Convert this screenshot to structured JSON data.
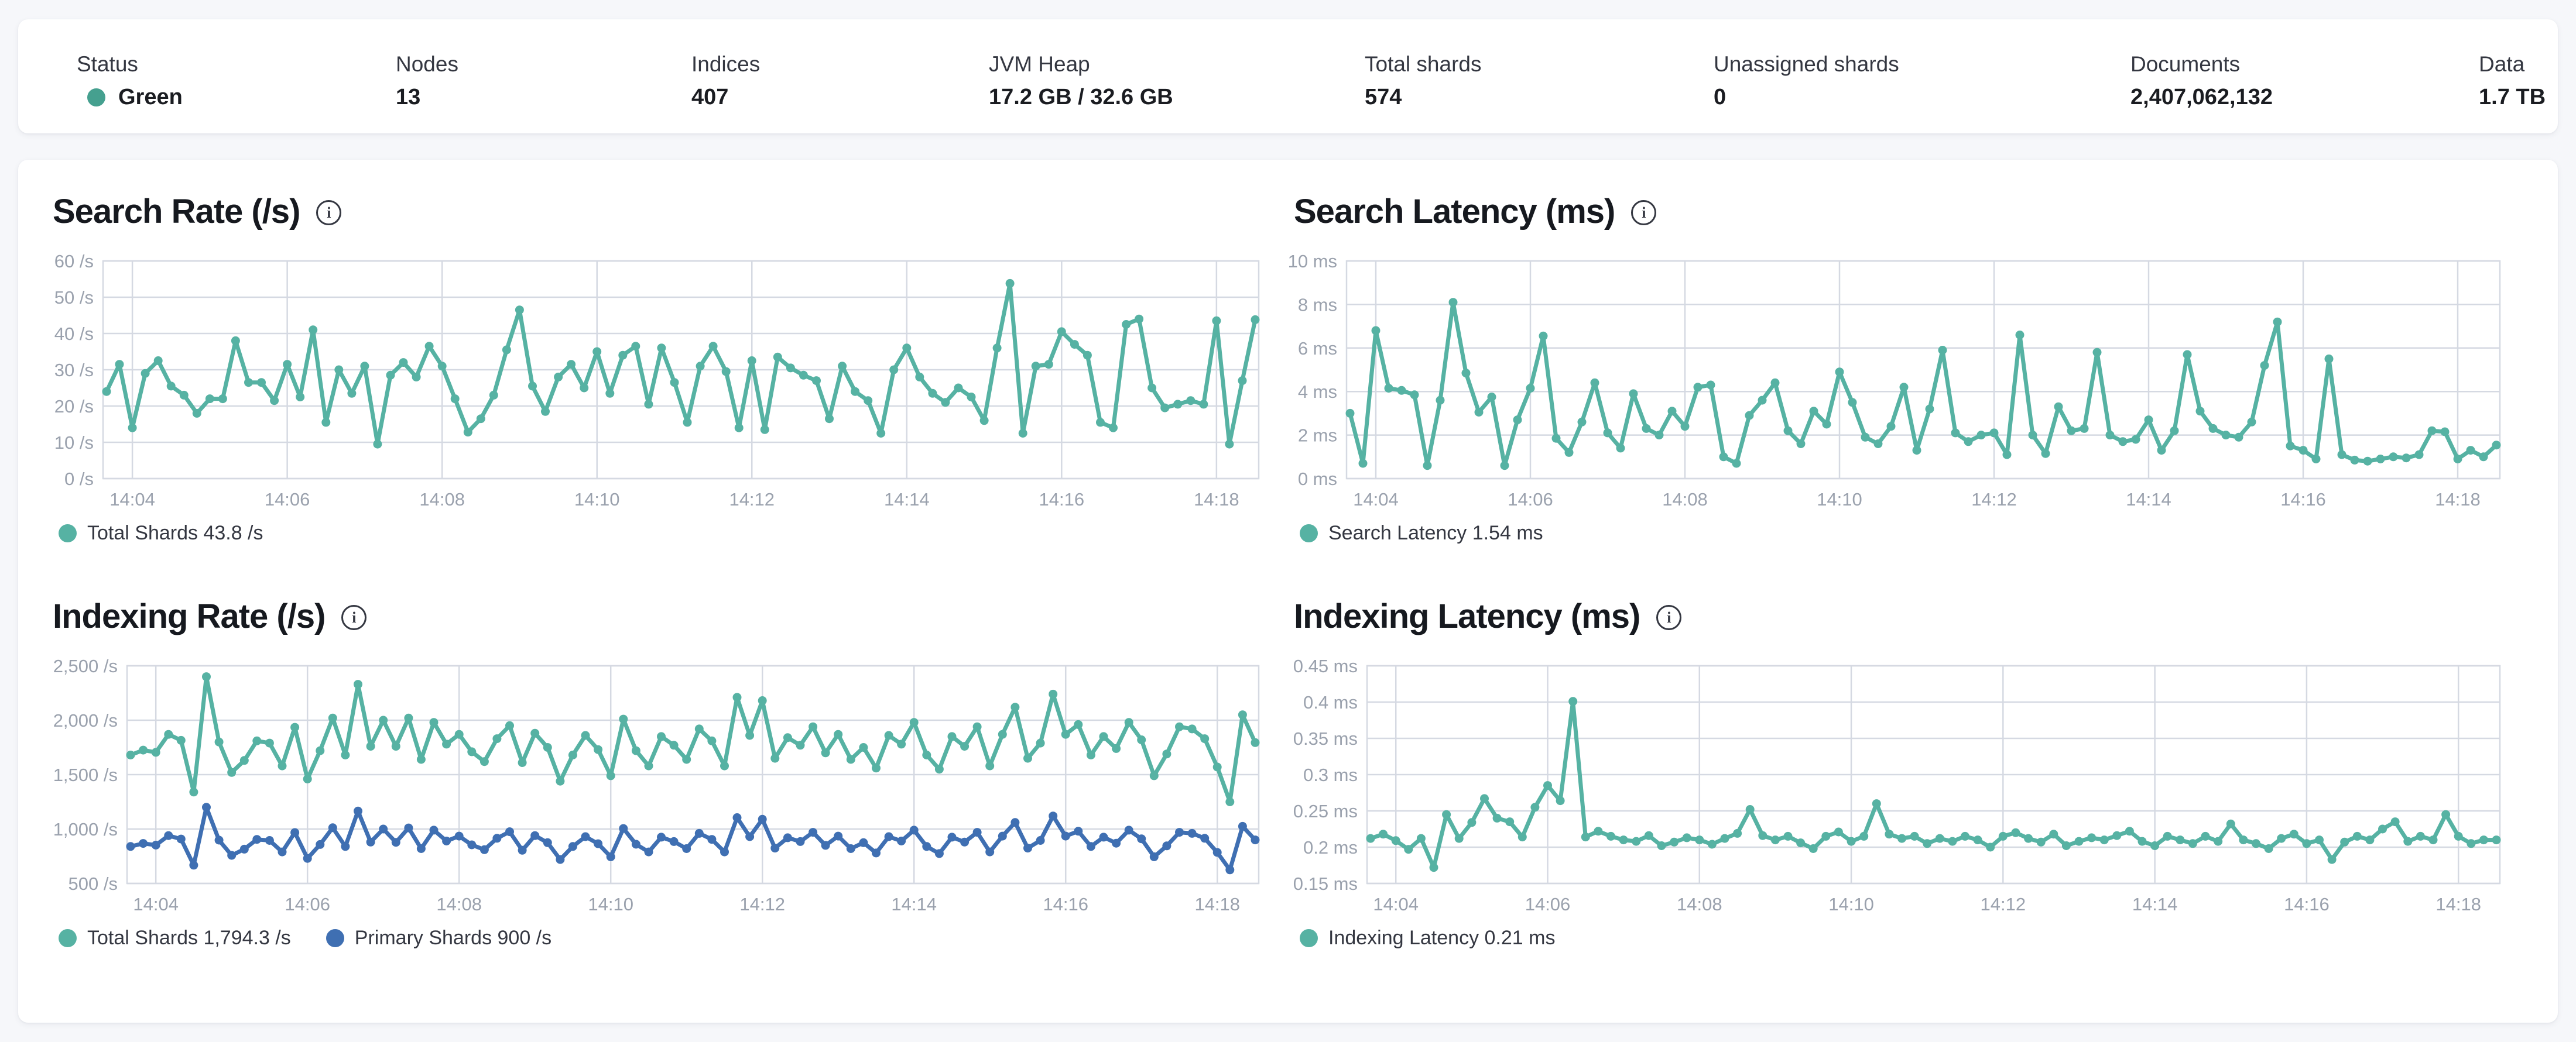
{
  "icons": {
    "info": "i"
  },
  "status_bar": {
    "items": [
      {
        "label": "Status",
        "value": "Green",
        "dot_color": "#45a08f"
      },
      {
        "label": "Nodes",
        "value": "13"
      },
      {
        "label": "Indices",
        "value": "407"
      },
      {
        "label": "JVM Heap",
        "value": "17.2 GB / 32.6 GB"
      },
      {
        "label": "Total shards",
        "value": "574"
      },
      {
        "label": "Unassigned shards",
        "value": "0"
      },
      {
        "label": "Documents",
        "value": "2,407,062,132"
      },
      {
        "label": "Data",
        "value": "1.7 TB"
      }
    ]
  },
  "chart_data": [
    {
      "type": "line",
      "title": "Search Rate (/s)",
      "ylabel": "/s",
      "ylim": [
        0,
        60
      ],
      "grid": true,
      "legend_position": "bottom",
      "yticks": [
        {
          "v": 0,
          "label": "0 /s"
        },
        {
          "v": 10,
          "label": "10 /s"
        },
        {
          "v": 20,
          "label": "20 /s"
        },
        {
          "v": 30,
          "label": "30 /s"
        },
        {
          "v": 40,
          "label": "40 /s"
        },
        {
          "v": 50,
          "label": "50 /s"
        },
        {
          "v": 60,
          "label": "60 /s"
        }
      ],
      "xticks": [
        {
          "i": 2,
          "label": "14:04"
        },
        {
          "i": 14,
          "label": "14:06"
        },
        {
          "i": 26,
          "label": "14:08"
        },
        {
          "i": 38,
          "label": "14:10"
        },
        {
          "i": 50,
          "label": "14:12"
        },
        {
          "i": 62,
          "label": "14:14"
        },
        {
          "i": 74,
          "label": "14:16"
        },
        {
          "i": 86,
          "label": "14:18"
        }
      ],
      "series": [
        {
          "name": "Total Shards",
          "color": "#56b2a3",
          "current": "43.8 /s",
          "values": [
            24,
            31.5,
            14,
            29,
            32.5,
            25.5,
            23,
            18,
            22,
            22,
            38,
            26.5,
            26.5,
            21.5,
            31.5,
            22.5,
            41,
            15.5,
            30,
            23.5,
            31,
            9.5,
            28.5,
            32,
            28,
            36.5,
            31,
            22,
            12.8,
            16.5,
            23,
            35.5,
            46.5,
            25.5,
            18.5,
            28,
            31.5,
            25,
            35,
            23.5,
            34,
            36.5,
            20.5,
            36,
            26.5,
            15.5,
            31,
            36.5,
            29.5,
            14,
            32.5,
            13.5,
            33.5,
            30.5,
            28.5,
            27,
            16.5,
            31,
            24,
            21.5,
            12.5,
            30,
            36,
            28,
            23.5,
            21,
            25,
            22.5,
            16,
            36,
            53.8,
            12.5,
            31,
            31.5,
            40.5,
            37,
            34,
            15.5,
            14,
            42.5,
            44,
            25,
            19.5,
            20.5,
            21.5,
            20.5,
            43.5,
            9.5,
            27,
            43.8
          ]
        }
      ],
      "legend": [
        {
          "label": "Total Shards 43.8 /s",
          "color": "#56b2a3"
        }
      ]
    },
    {
      "type": "line",
      "title": "Search Latency (ms)",
      "ylabel": "ms",
      "ylim": [
        0,
        10
      ],
      "grid": true,
      "legend_position": "bottom",
      "yticks": [
        {
          "v": 0,
          "label": "0 ms"
        },
        {
          "v": 2,
          "label": "2 ms"
        },
        {
          "v": 4,
          "label": "4 ms"
        },
        {
          "v": 6,
          "label": "6 ms"
        },
        {
          "v": 8,
          "label": "8 ms"
        },
        {
          "v": 10,
          "label": "10 ms"
        }
      ],
      "xticks": [
        {
          "i": 2,
          "label": "14:04"
        },
        {
          "i": 14,
          "label": "14:06"
        },
        {
          "i": 26,
          "label": "14:08"
        },
        {
          "i": 38,
          "label": "14:10"
        },
        {
          "i": 50,
          "label": "14:12"
        },
        {
          "i": 62,
          "label": "14:14"
        },
        {
          "i": 74,
          "label": "14:16"
        },
        {
          "i": 86,
          "label": "14:18"
        }
      ],
      "series": [
        {
          "name": "Search Latency",
          "color": "#56b2a3",
          "current": "1.54 ms",
          "values": [
            3,
            0.7,
            6.8,
            4.15,
            4.05,
            3.85,
            0.6,
            3.6,
            8.1,
            4.85,
            3.05,
            3.75,
            0.6,
            2.7,
            4.15,
            6.55,
            1.85,
            1.2,
            2.6,
            4.4,
            2.1,
            1.4,
            3.9,
            2.3,
            2,
            3.1,
            2.4,
            4.2,
            4.3,
            1,
            0.7,
            2.9,
            3.6,
            4.4,
            2.2,
            1.6,
            3.1,
            2.5,
            4.9,
            3.5,
            1.9,
            1.6,
            2.4,
            4.2,
            1.3,
            3.2,
            5.9,
            2.1,
            1.7,
            2,
            2.1,
            1.1,
            6.6,
            2,
            1.15,
            3.3,
            2.2,
            2.3,
            5.8,
            2,
            1.7,
            1.8,
            2.7,
            1.3,
            2.2,
            5.7,
            3.1,
            2.3,
            2,
            1.9,
            2.6,
            5.2,
            7.2,
            1.5,
            1.3,
            0.9,
            5.5,
            1.1,
            0.85,
            0.8,
            0.9,
            1,
            0.95,
            1.1,
            2.2,
            2.15,
            0.9,
            1.3,
            1,
            1.54
          ]
        }
      ],
      "legend": [
        {
          "label": "Search Latency 1.54 ms",
          "color": "#56b2a3"
        }
      ]
    },
    {
      "type": "line",
      "title": "Indexing Rate (/s)",
      "ylabel": "/s",
      "ylim": [
        500,
        2500
      ],
      "grid": true,
      "legend_position": "bottom",
      "yticks": [
        {
          "v": 500,
          "label": "500 /s"
        },
        {
          "v": 1000,
          "label": "1,000 /s"
        },
        {
          "v": 1500,
          "label": "1,500 /s"
        },
        {
          "v": 2000,
          "label": "2,000 /s"
        },
        {
          "v": 2500,
          "label": "2,500 /s"
        }
      ],
      "xticks": [
        {
          "i": 2,
          "label": "14:04"
        },
        {
          "i": 14,
          "label": "14:06"
        },
        {
          "i": 26,
          "label": "14:08"
        },
        {
          "i": 38,
          "label": "14:10"
        },
        {
          "i": 50,
          "label": "14:12"
        },
        {
          "i": 62,
          "label": "14:14"
        },
        {
          "i": 74,
          "label": "14:16"
        },
        {
          "i": 86,
          "label": "14:18"
        }
      ],
      "series": [
        {
          "name": "Total Shards",
          "color": "#56b2a3",
          "current": "1,794.3 /s",
          "values": [
            1680,
            1725,
            1705,
            1870,
            1815,
            1340,
            2400,
            1800,
            1520,
            1630,
            1810,
            1790,
            1580,
            1935,
            1460,
            1720,
            2020,
            1680,
            2330,
            1760,
            2000,
            1760,
            2020,
            1640,
            1980,
            1780,
            1870,
            1710,
            1620,
            1830,
            1950,
            1610,
            1880,
            1750,
            1440,
            1680,
            1860,
            1730,
            1490,
            2010,
            1720,
            1580,
            1850,
            1770,
            1640,
            1920,
            1810,
            1580,
            2210,
            1860,
            2180,
            1650,
            1840,
            1770,
            1940,
            1700,
            1870,
            1640,
            1750,
            1560,
            1860,
            1780,
            1980,
            1680,
            1550,
            1850,
            1760,
            1940,
            1580,
            1870,
            2120,
            1650,
            1790,
            2240,
            1870,
            1960,
            1680,
            1850,
            1740,
            1980,
            1820,
            1490,
            1690,
            1940,
            1920,
            1830,
            1570,
            1250,
            2050,
            1794.3
          ]
        },
        {
          "name": "Primary Shards",
          "color": "#3f6fb2",
          "current": "900 /s",
          "values": [
            840,
            868,
            852,
            940,
            908,
            668,
            1200,
            898,
            758,
            815,
            905,
            895,
            790,
            968,
            730,
            858,
            1012,
            840,
            1165,
            880,
            1000,
            878,
            1010,
            820,
            990,
            890,
            935,
            855,
            810,
            915,
            975,
            805,
            940,
            875,
            720,
            840,
            930,
            865,
            745,
            1005,
            860,
            790,
            925,
            885,
            820,
            960,
            905,
            790,
            1105,
            930,
            1090,
            825,
            920,
            885,
            970,
            850,
            935,
            820,
            875,
            780,
            930,
            890,
            990,
            840,
            775,
            925,
            880,
            970,
            790,
            935,
            1060,
            825,
            895,
            1120,
            935,
            980,
            840,
            925,
            870,
            990,
            910,
            745,
            845,
            970,
            960,
            915,
            785,
            625,
            1025,
            900
          ]
        }
      ],
      "legend": [
        {
          "label": "Total Shards 1,794.3 /s",
          "color": "#56b2a3"
        },
        {
          "label": "Primary Shards 900 /s",
          "color": "#3f6fb2"
        }
      ]
    },
    {
      "type": "line",
      "title": "Indexing Latency (ms)",
      "ylabel": "ms",
      "ylim": [
        0.15,
        0.45
      ],
      "grid": true,
      "legend_position": "bottom",
      "yticks": [
        {
          "v": 0.15,
          "label": "0.15 ms"
        },
        {
          "v": 0.2,
          "label": "0.2 ms"
        },
        {
          "v": 0.25,
          "label": "0.25 ms"
        },
        {
          "v": 0.3,
          "label": "0.3 ms"
        },
        {
          "v": 0.35,
          "label": "0.35 ms"
        },
        {
          "v": 0.4,
          "label": "0.4 ms"
        },
        {
          "v": 0.45,
          "label": "0.45 ms"
        }
      ],
      "xticks": [
        {
          "i": 2,
          "label": "14:04"
        },
        {
          "i": 14,
          "label": "14:06"
        },
        {
          "i": 26,
          "label": "14:08"
        },
        {
          "i": 38,
          "label": "14:10"
        },
        {
          "i": 50,
          "label": "14:12"
        },
        {
          "i": 62,
          "label": "14:14"
        },
        {
          "i": 74,
          "label": "14:16"
        },
        {
          "i": 86,
          "label": "14:18"
        }
      ],
      "series": [
        {
          "name": "Indexing Latency",
          "color": "#56b2a3",
          "current": "0.21 ms",
          "values": [
            0.212,
            0.218,
            0.209,
            0.197,
            0.212,
            0.172,
            0.245,
            0.212,
            0.234,
            0.267,
            0.24,
            0.235,
            0.214,
            0.255,
            0.285,
            0.264,
            0.401,
            0.214,
            0.222,
            0.215,
            0.21,
            0.208,
            0.216,
            0.202,
            0.207,
            0.213,
            0.21,
            0.204,
            0.212,
            0.219,
            0.252,
            0.216,
            0.21,
            0.215,
            0.206,
            0.198,
            0.215,
            0.221,
            0.208,
            0.215,
            0.26,
            0.218,
            0.212,
            0.215,
            0.205,
            0.212,
            0.208,
            0.215,
            0.21,
            0.2,
            0.215,
            0.22,
            0.212,
            0.207,
            0.218,
            0.202,
            0.208,
            0.213,
            0.21,
            0.216,
            0.222,
            0.208,
            0.202,
            0.215,
            0.21,
            0.205,
            0.215,
            0.208,
            0.232,
            0.21,
            0.205,
            0.198,
            0.212,
            0.218,
            0.205,
            0.21,
            0.183,
            0.207,
            0.215,
            0.21,
            0.225,
            0.235,
            0.208,
            0.215,
            0.21,
            0.245,
            0.215,
            0.205,
            0.21,
            0.21
          ]
        }
      ],
      "legend": [
        {
          "label": "Indexing Latency 0.21 ms",
          "color": "#56b2a3"
        }
      ]
    }
  ]
}
